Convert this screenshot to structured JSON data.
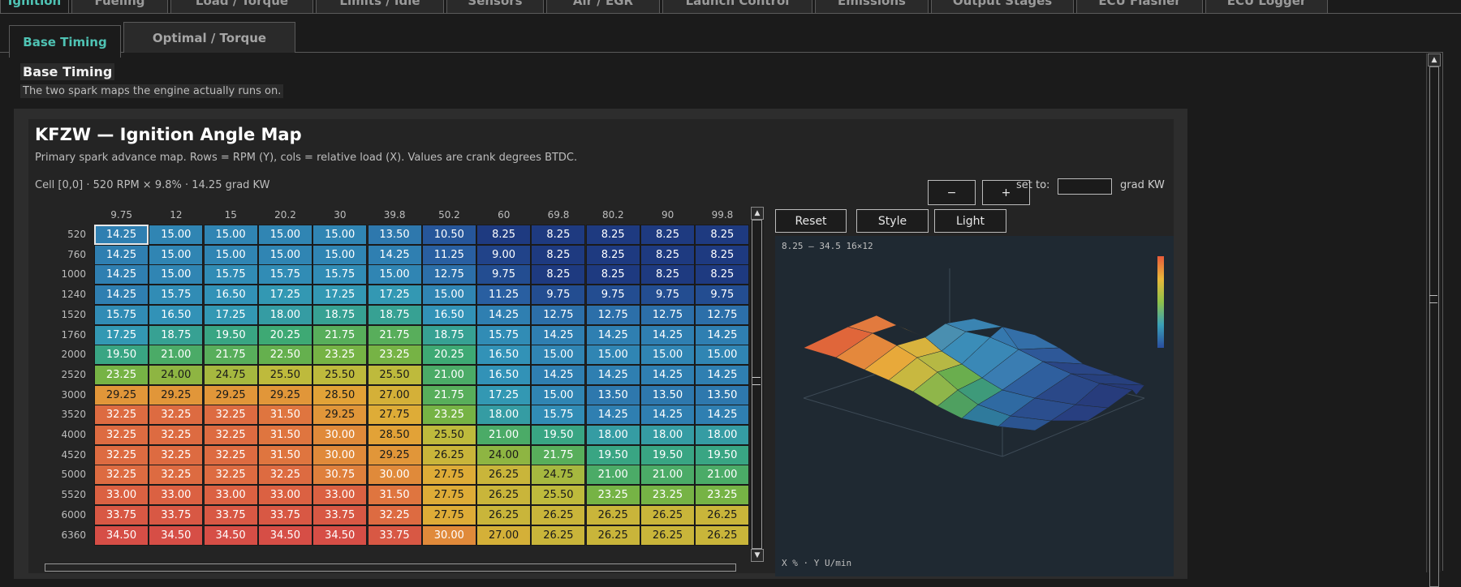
{
  "top_tabs": [
    {
      "label": "Ignition",
      "active": true
    },
    {
      "label": "Fueling",
      "active": false
    },
    {
      "label": "Load / Torque",
      "active": false
    },
    {
      "label": "Limits / Idle",
      "active": false
    },
    {
      "label": "Sensors",
      "active": false
    },
    {
      "label": "Air / EGR",
      "active": false
    },
    {
      "label": "Launch Control",
      "active": false
    },
    {
      "label": "Emissions",
      "active": false
    },
    {
      "label": "Output Stages",
      "active": false
    },
    {
      "label": "ECU Flasher",
      "active": false
    },
    {
      "label": "ECU Logger",
      "active": false
    }
  ],
  "sub_tabs": [
    {
      "label": "Base Timing",
      "active": true
    },
    {
      "label": "Optimal / Torque",
      "active": false
    }
  ],
  "section": {
    "title": "Base Timing",
    "subtitle": "The two spark maps the engine actually runs on."
  },
  "map": {
    "title": "KFZW  —  Ignition Angle Map",
    "description": "Primary spark advance map. Rows = RPM (Y), cols = relative load (X). Values are crank degrees BTDC.",
    "cell_info": "Cell [0,0]  ·  520 RPM × 9.8%  ·  14.25 grad KW",
    "selected_cell": [
      0,
      0
    ],
    "col_headers": [
      "9.75",
      "12",
      "15",
      "20.2",
      "30",
      "39.8",
      "50.2",
      "60",
      "69.8",
      "80.2",
      "90",
      "99.8"
    ],
    "row_headers": [
      "520",
      "760",
      "1000",
      "1240",
      "1520",
      "1760",
      "2000",
      "2520",
      "3000",
      "3520",
      "4000",
      "4520",
      "5000",
      "5520",
      "6000",
      "6360"
    ],
    "values": [
      [
        "14.25",
        "15.00",
        "15.00",
        "15.00",
        "15.00",
        "13.50",
        "10.50",
        "8.25",
        "8.25",
        "8.25",
        "8.25",
        "8.25"
      ],
      [
        "14.25",
        "15.00",
        "15.00",
        "15.00",
        "15.00",
        "14.25",
        "11.25",
        "9.00",
        "8.25",
        "8.25",
        "8.25",
        "8.25"
      ],
      [
        "14.25",
        "15.00",
        "15.75",
        "15.75",
        "15.75",
        "15.00",
        "12.75",
        "9.75",
        "8.25",
        "8.25",
        "8.25",
        "8.25"
      ],
      [
        "14.25",
        "15.75",
        "16.50",
        "17.25",
        "17.25",
        "17.25",
        "15.00",
        "11.25",
        "9.75",
        "9.75",
        "9.75",
        "9.75"
      ],
      [
        "15.75",
        "16.50",
        "17.25",
        "18.00",
        "18.75",
        "18.75",
        "16.50",
        "14.25",
        "12.75",
        "12.75",
        "12.75",
        "12.75"
      ],
      [
        "17.25",
        "18.75",
        "19.50",
        "20.25",
        "21.75",
        "21.75",
        "18.75",
        "15.75",
        "14.25",
        "14.25",
        "14.25",
        "14.25"
      ],
      [
        "19.50",
        "21.00",
        "21.75",
        "22.50",
        "23.25",
        "23.25",
        "20.25",
        "16.50",
        "15.00",
        "15.00",
        "15.00",
        "15.00"
      ],
      [
        "23.25",
        "24.00",
        "24.75",
        "25.50",
        "25.50",
        "25.50",
        "21.00",
        "16.50",
        "14.25",
        "14.25",
        "14.25",
        "14.25"
      ],
      [
        "29.25",
        "29.25",
        "29.25",
        "29.25",
        "28.50",
        "27.00",
        "21.75",
        "17.25",
        "15.00",
        "13.50",
        "13.50",
        "13.50"
      ],
      [
        "32.25",
        "32.25",
        "32.25",
        "31.50",
        "29.25",
        "27.75",
        "23.25",
        "18.00",
        "15.75",
        "14.25",
        "14.25",
        "14.25"
      ],
      [
        "32.25",
        "32.25",
        "32.25",
        "31.50",
        "30.00",
        "28.50",
        "25.50",
        "21.00",
        "19.50",
        "18.00",
        "18.00",
        "18.00"
      ],
      [
        "32.25",
        "32.25",
        "32.25",
        "31.50",
        "30.00",
        "29.25",
        "26.25",
        "24.00",
        "21.75",
        "19.50",
        "19.50",
        "19.50"
      ],
      [
        "32.25",
        "32.25",
        "32.25",
        "32.25",
        "30.75",
        "30.00",
        "27.75",
        "26.25",
        "24.75",
        "21.00",
        "21.00",
        "21.00"
      ],
      [
        "33.00",
        "33.00",
        "33.00",
        "33.00",
        "33.00",
        "31.50",
        "27.75",
        "26.25",
        "25.50",
        "23.25",
        "23.25",
        "23.25"
      ],
      [
        "33.75",
        "33.75",
        "33.75",
        "33.75",
        "33.75",
        "32.25",
        "27.75",
        "26.25",
        "26.25",
        "26.25",
        "26.25",
        "26.25"
      ],
      [
        "34.50",
        "34.50",
        "34.50",
        "34.50",
        "34.50",
        "33.75",
        "30.00",
        "27.00",
        "26.25",
        "26.25",
        "26.25",
        "26.25"
      ]
    ]
  },
  "controls": {
    "minus": "−",
    "plus": "+",
    "set_to_label": "set to:",
    "set_to_value": "",
    "unit": "grad KW",
    "reset": "Reset",
    "style": "Style",
    "light": "Light"
  },
  "view3d": {
    "range_label": "8.25 – 34.5   16×12",
    "axis_label": "X % · Y U/min"
  },
  "colors": {
    "accent": "#4fc3b4",
    "background": "#1b1b1b",
    "panel": "#242424"
  }
}
